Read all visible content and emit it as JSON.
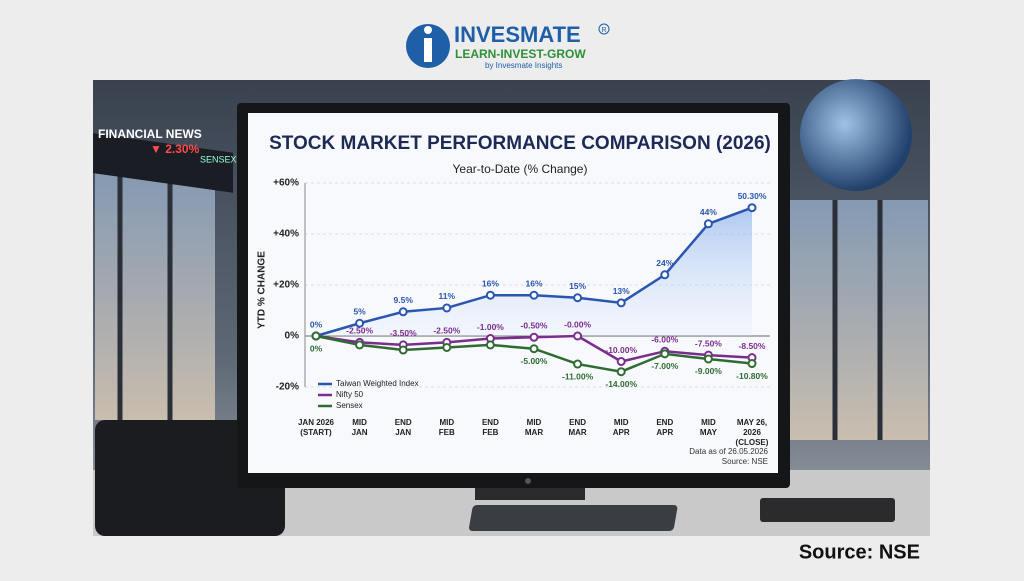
{
  "logo": {
    "name": "INVESMATE",
    "mark": "R",
    "tagline": "LEARN-INVEST-GROW",
    "byline": "by Invesmate Insights"
  },
  "ticker": {
    "label": "FINANCIAL NEWS",
    "change": "▼ 2.30%",
    "index": "SENSEX"
  },
  "source": "Source: NSE",
  "chart_data": {
    "type": "line",
    "title": "STOCK MARKET PERFORMANCE COMPARISON (2026)",
    "subtitle": "Year-to-Date (% Change)",
    "y_label": "YTD % CHANGE",
    "note": "Data as of 26.05.2026",
    "source": "Source: NSE",
    "categories": [
      [
        "JAN 2026",
        "(START)"
      ],
      [
        "MID",
        "JAN"
      ],
      [
        "END",
        "JAN"
      ],
      [
        "MID",
        "FEB"
      ],
      [
        "END",
        "FEB"
      ],
      [
        "MID",
        "MAR"
      ],
      [
        "END",
        "MAR"
      ],
      [
        "MID",
        "APR"
      ],
      [
        "END",
        "APR"
      ],
      [
        "MID",
        "MAY"
      ],
      [
        "MAY 26,",
        "2026",
        "(CLOSE)"
      ]
    ],
    "ylim": [
      -20,
      60
    ],
    "yticks": [
      {
        "value": 60,
        "label": "+60%"
      },
      {
        "value": 40,
        "label": "+40%"
      },
      {
        "value": 20,
        "label": "+20%"
      },
      {
        "value": 0,
        "label": "0%"
      },
      {
        "value": -20,
        "label": "-20%"
      }
    ],
    "grid": true,
    "legend": "lower-left",
    "series": [
      {
        "name": "Taiwan Weighted Index",
        "color": "#2a56b0",
        "values": [
          0,
          5,
          9.5,
          11,
          16,
          16,
          15,
          13,
          24,
          44,
          50.3
        ],
        "value_labels": [
          "0%",
          "5%",
          "9.5%",
          "11%",
          "16%",
          "16%",
          "15%",
          "13%",
          "24%",
          "44%",
          "50.30%"
        ]
      },
      {
        "name": "Nifty 50",
        "color": "#7b2d8e",
        "values": [
          0,
          -2.5,
          -3.5,
          -2.5,
          -1.0,
          -0.5,
          0,
          -10,
          -6,
          -7.5,
          -8.5
        ],
        "value_labels": [
          null,
          "-2.50%",
          "-3.50%",
          "-2.50%",
          "-1.00%",
          "-0.50%",
          "-0.00%",
          "-10.00%",
          "-6.00%",
          "-7.50%",
          "-8.50%"
        ]
      },
      {
        "name": "Sensex",
        "color": "#2f6b32",
        "values": [
          0,
          -3.5,
          -5.5,
          -4.5,
          -3.5,
          -5,
          -11,
          -14,
          -7,
          -9,
          -10.8
        ],
        "value_labels": [
          "0%",
          null,
          null,
          null,
          null,
          "-5.00%",
          "-11.00%",
          "-14.00%",
          "-7.00%",
          "-9.00%",
          "-10.80%"
        ]
      }
    ]
  }
}
